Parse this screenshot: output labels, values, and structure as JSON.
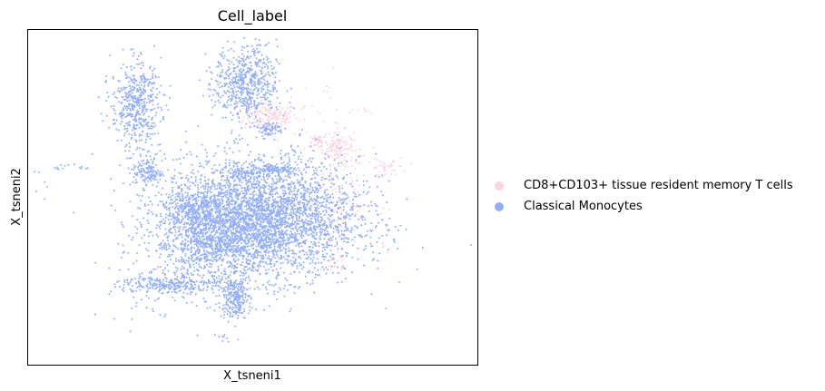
{
  "chart_data": {
    "type": "scatter",
    "title": "Cell_label",
    "xlabel": "X_tsneni1",
    "ylabel": "X_tsneni2",
    "grid": false,
    "ticks": false,
    "legend_position": "right",
    "xlim": [
      -100,
      100
    ],
    "ylim": [
      -100,
      100
    ],
    "series": [
      {
        "name": "CD8+CD103+ tissue resident memory T cells",
        "color": "#fad4de",
        "clusters": [
          {
            "cx": 8,
            "cy": 48,
            "sx": 6,
            "sy": 4,
            "n": 170
          },
          {
            "cx": 38,
            "cy": 30,
            "sx": 3.5,
            "sy": 5,
            "n": 120
          },
          {
            "cx": 29,
            "cy": 33,
            "sx": 2,
            "sy": 1.5,
            "n": 40
          },
          {
            "cx": 40,
            "cy": 0,
            "sx": 6,
            "sy": 16,
            "n": 90
          },
          {
            "cx": 37,
            "cy": -40,
            "sx": 3,
            "sy": 3,
            "n": 25
          },
          {
            "cx": 62,
            "cy": 18,
            "sx": 3.5,
            "sy": 3,
            "n": 30
          },
          {
            "cx": 58,
            "cy": -18,
            "sx": 2,
            "sy": 8,
            "n": 12
          },
          {
            "cx": 30,
            "cy": 44,
            "sx": 10,
            "sy": 14,
            "n": 40
          },
          {
            "cx": 50,
            "cy": 52,
            "sx": 1.2,
            "sy": 1.2,
            "n": 6
          },
          {
            "cx": 55,
            "cy": 16,
            "sx": 1.0,
            "sy": 6,
            "n": 10
          }
        ]
      },
      {
        "name": "Classical Monocytes",
        "color": "#93aefa",
        "clusters": [
          {
            "cx": 3,
            "cy": -12,
            "sx": 22,
            "sy": 18,
            "n": 3600
          },
          {
            "cx": -16,
            "cy": -26,
            "sx": 14,
            "sy": 11,
            "n": 800
          },
          {
            "cx": -25,
            "cy": -6,
            "sx": 7,
            "sy": 5,
            "n": 250
          },
          {
            "cx": -8,
            "cy": -60,
            "sx": 3.5,
            "sy": 6,
            "n": 240
          },
          {
            "cx": -38,
            "cy": -52,
            "sx": 11,
            "sy": 3,
            "n": 280
          },
          {
            "cx": -52,
            "cy": 55,
            "sx": 5.5,
            "sy": 13,
            "n": 500
          },
          {
            "cx": -3,
            "cy": 68,
            "sx": 7,
            "sy": 11,
            "n": 600
          },
          {
            "cx": -47,
            "cy": 15,
            "sx": 3.2,
            "sy": 4.5,
            "n": 130
          },
          {
            "cx": 10,
            "cy": 17,
            "sx": 6,
            "sy": 1.6,
            "n": 110
          },
          {
            "cx": -3,
            "cy": 15,
            "sx": 3.5,
            "sy": 1.6,
            "n": 55
          },
          {
            "cx": 7,
            "cy": 41,
            "sx": 3.5,
            "sy": 2.2,
            "n": 75
          },
          {
            "cx": -45,
            "cy": -62,
            "sx": 9,
            "sy": 6,
            "n": 30
          },
          {
            "cx": -15,
            "cy": -84,
            "sx": 4,
            "sy": 1,
            "n": 10
          },
          {
            "cx": -81,
            "cy": 18,
            "sx": 6,
            "sy": 1,
            "n": 14
          },
          {
            "cx": -90,
            "cy": 5,
            "sx": 4,
            "sy": 8,
            "n": 6
          }
        ]
      }
    ]
  },
  "legend": {
    "items": [
      {
        "label": "CD8+CD103+ tissue resident memory T cells",
        "color": "#fad4de"
      },
      {
        "label": "Classical Monocytes",
        "color": "#93aefa"
      }
    ]
  }
}
